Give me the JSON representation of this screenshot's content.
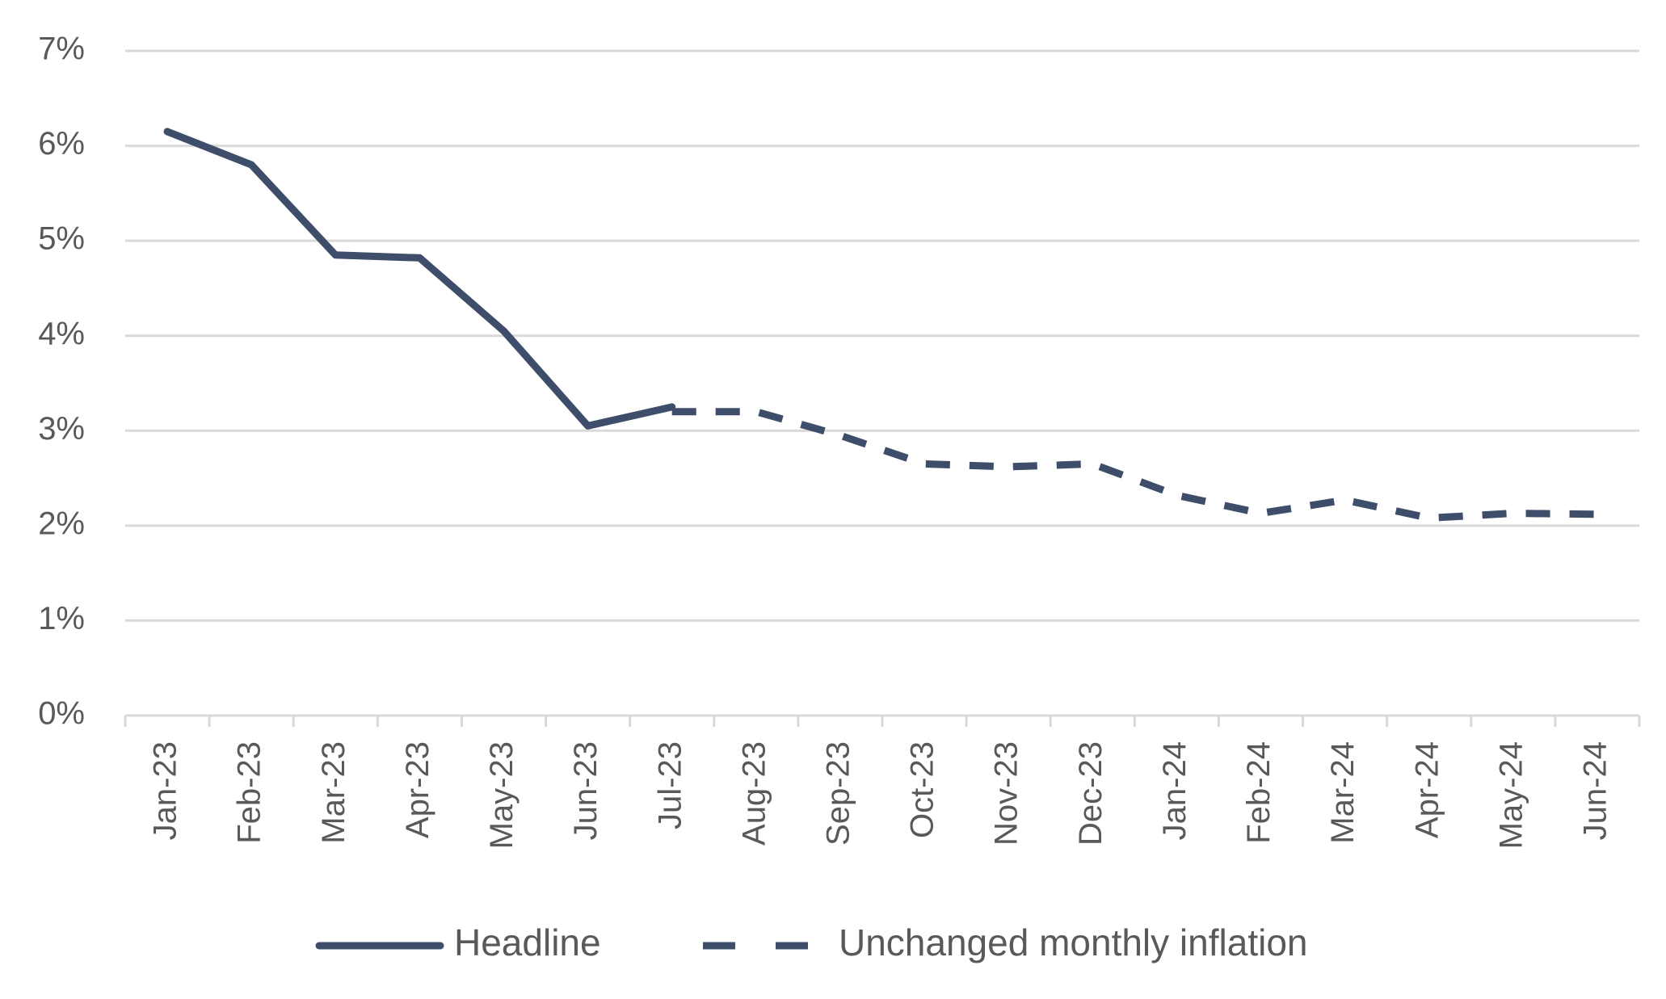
{
  "chart_data": {
    "type": "line",
    "categories": [
      "Jan-23",
      "Feb-23",
      "Mar-23",
      "Apr-23",
      "May-23",
      "Jun-23",
      "Jul-23",
      "Aug-23",
      "Sep-23",
      "Oct-23",
      "Nov-23",
      "Dec-23",
      "Jan-24",
      "Feb-24",
      "Mar-24",
      "Apr-24",
      "May-24",
      "Jun-24"
    ],
    "series": [
      {
        "name": "Headline",
        "color": "#3e4e6a",
        "dashed": false,
        "values": [
          6.15,
          5.8,
          4.85,
          4.82,
          4.05,
          3.05,
          3.25,
          null,
          null,
          null,
          null,
          null,
          null,
          null,
          null,
          null,
          null,
          null
        ]
      },
      {
        "name": "Unchanged monthly inflation",
        "color": "#3e4e6a",
        "dashed": true,
        "values": [
          null,
          null,
          null,
          null,
          null,
          null,
          3.2,
          3.2,
          2.95,
          2.65,
          2.62,
          2.65,
          2.32,
          2.13,
          2.27,
          2.08,
          2.13,
          2.12
        ]
      }
    ],
    "ylim": [
      0,
      7
    ],
    "yticks": [
      {
        "value": 0,
        "label": "0%"
      },
      {
        "value": 1,
        "label": "1%"
      },
      {
        "value": 2,
        "label": "2%"
      },
      {
        "value": 3,
        "label": "3%"
      },
      {
        "value": 4,
        "label": "4%"
      },
      {
        "value": 5,
        "label": "5%"
      },
      {
        "value": 6,
        "label": "6%"
      },
      {
        "value": 7,
        "label": "7%"
      }
    ],
    "grid": true,
    "legend": "bottom"
  }
}
